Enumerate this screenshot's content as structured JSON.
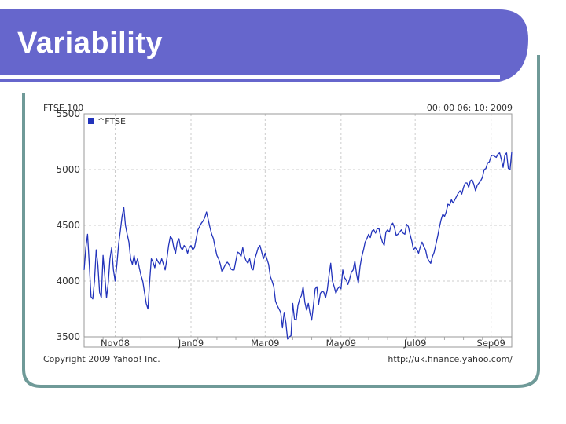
{
  "slide": {
    "title": "Variability",
    "colors": {
      "title_bar": "#6666cc",
      "frame": "#6f9a98",
      "line": "#2233bb"
    }
  },
  "chart_data": {
    "type": "line",
    "title": "FTSE 100",
    "timestamp": "00: 00 06: 10: 2009",
    "legend": [
      "^FTSE"
    ],
    "legend_position": "top-left",
    "grid": true,
    "ylim": [
      3500,
      5500
    ],
    "y_ticks": [
      5500,
      5000,
      4500,
      4000,
      3500
    ],
    "x_ticks": [
      "Nov08",
      "Jan09",
      "Mar09",
      "May09",
      "Jul09",
      "Sep09"
    ],
    "x_tick_index": [
      18,
      62,
      105,
      149,
      192,
      236
    ],
    "credit_left": "Copyright 2009 Yahoo! Inc.",
    "credit_right": "http://uk.finance.yahoo.com/",
    "series": [
      {
        "name": "^FTSE",
        "values": [
          4100,
          4300,
          4420,
          4150,
          3860,
          3840,
          4000,
          4280,
          4150,
          3900,
          3850,
          4230,
          4050,
          3850,
          3980,
          4200,
          4300,
          4100,
          4000,
          4150,
          4330,
          4450,
          4580,
          4660,
          4500,
          4420,
          4350,
          4200,
          4150,
          4230,
          4150,
          4200,
          4120,
          4050,
          4000,
          3900,
          3800,
          3750,
          4000,
          4200,
          4170,
          4120,
          4200,
          4170,
          4150,
          4200,
          4150,
          4100,
          4200,
          4320,
          4400,
          4380,
          4300,
          4250,
          4350,
          4380,
          4300,
          4280,
          4320,
          4300,
          4250,
          4300,
          4320,
          4280,
          4300,
          4380,
          4460,
          4490,
          4520,
          4540,
          4570,
          4620,
          4550,
          4480,
          4420,
          4380,
          4300,
          4230,
          4200,
          4150,
          4080,
          4120,
          4150,
          4170,
          4150,
          4110,
          4100,
          4100,
          4180,
          4260,
          4250,
          4220,
          4300,
          4220,
          4180,
          4160,
          4200,
          4120,
          4100,
          4200,
          4250,
          4300,
          4320,
          4260,
          4200,
          4250,
          4200,
          4150,
          4040,
          4000,
          3950,
          3820,
          3780,
          3750,
          3720,
          3580,
          3720,
          3630,
          3480,
          3500,
          3510,
          3800,
          3660,
          3650,
          3780,
          3840,
          3870,
          3950,
          3810,
          3740,
          3800,
          3710,
          3650,
          3780,
          3930,
          3950,
          3790,
          3890,
          3910,
          3900,
          3850,
          3920,
          4050,
          4160,
          4000,
          3950,
          3890,
          3930,
          3950,
          3930,
          4100,
          4030,
          4010,
          3970,
          4020,
          4080,
          4100,
          4180,
          4060,
          3980,
          4130,
          4220,
          4280,
          4350,
          4380,
          4420,
          4390,
          4450,
          4460,
          4430,
          4470,
          4470,
          4400,
          4350,
          4320,
          4440,
          4460,
          4440,
          4500,
          4520,
          4480,
          4410,
          4420,
          4440,
          4460,
          4430,
          4420,
          4510,
          4490,
          4420,
          4360,
          4280,
          4300,
          4280,
          4250,
          4310,
          4350,
          4310,
          4280,
          4210,
          4180,
          4160,
          4220,
          4260,
          4330,
          4400,
          4480,
          4550,
          4600,
          4580,
          4620,
          4690,
          4680,
          4730,
          4700,
          4730,
          4760,
          4790,
          4810,
          4780,
          4840,
          4880,
          4880,
          4840,
          4900,
          4910,
          4870,
          4810,
          4860,
          4880,
          4900,
          4930,
          5000,
          5010,
          5060,
          5070,
          5120,
          5130,
          5120,
          5110,
          5140,
          5150,
          5090,
          5020,
          5130,
          5150,
          5010,
          5000,
          5160
        ]
      }
    ]
  }
}
